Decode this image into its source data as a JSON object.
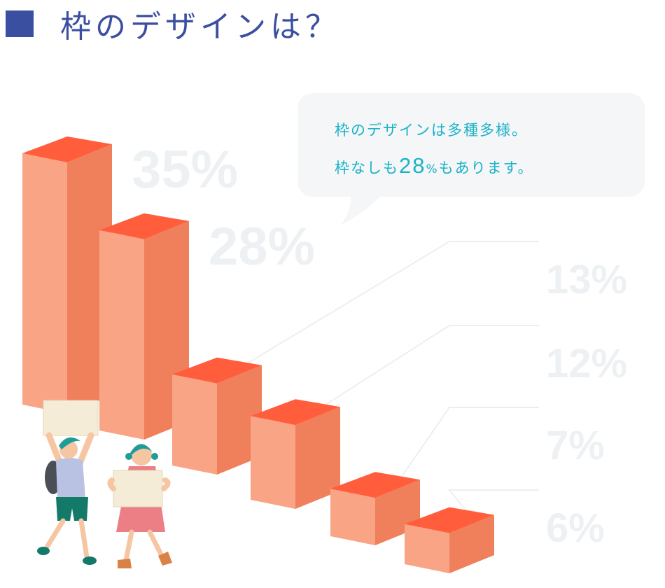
{
  "heading": {
    "title": "枠のデザインは？"
  },
  "bubble": {
    "line1": "枠のデザインは多種多様。",
    "line2_before": "枠なしも",
    "line2_number": "28",
    "line2_unit": "%",
    "line2_after": "もあります。"
  },
  "colors": {
    "heading": "#3a4fa0",
    "bar_top": "#ff5d3b",
    "bar_front": "#f9a585",
    "bar_side": "#f07f5c",
    "label": "#eef1f3",
    "bubble": "#f4f6f7",
    "bubble_text": "#19b2c8"
  },
  "chart_data": {
    "type": "bar",
    "title": "枠のデザインは？",
    "values": [
      35,
      28,
      13,
      12,
      7,
      6
    ],
    "labels": [
      "35%",
      "28%",
      "13%",
      "12%",
      "7%",
      "6%"
    ],
    "ylim": [
      0,
      35
    ]
  }
}
